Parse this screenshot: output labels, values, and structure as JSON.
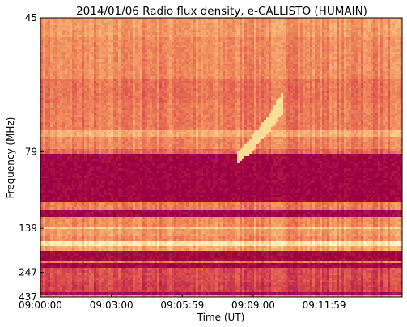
{
  "chart_data": {
    "type": "heatmap",
    "title": "2014/01/06  Radio flux density, e-CALLISTO (HUMAIN)",
    "xlabel": "Time (UT)",
    "ylabel": "Frequency (MHz)",
    "x_ticks": [
      "09:00:00",
      "09:03:00",
      "09:05:59",
      "09:09:00",
      "09:11:59"
    ],
    "x_tick_values_min": [
      0,
      3,
      6,
      9,
      12
    ],
    "x_range_min": [
      0,
      15.3
    ],
    "y_ticks": [
      "45",
      "79",
      "139",
      "247",
      "437"
    ],
    "y_tick_values_mhz": [
      45,
      79,
      139,
      247,
      437
    ],
    "y_range_mhz": [
      45,
      437
    ],
    "y_scale": "reciprocal",
    "y_inverted": true,
    "colormap": [
      "#9b0042",
      "#c42a4d",
      "#e0584e",
      "#f08a5c",
      "#f6b97a",
      "#fde6a0",
      "#ffffe6"
    ],
    "grid": false,
    "bands_mhz": [
      {
        "from": 45,
        "to": 48,
        "level": 0.55
      },
      {
        "from": 48,
        "to": 56,
        "level": 0.5
      },
      {
        "from": 56,
        "to": 62,
        "level": 0.42
      },
      {
        "from": 62,
        "to": 70,
        "level": 0.45
      },
      {
        "from": 70,
        "to": 73,
        "level": 0.62
      },
      {
        "from": 73,
        "to": 78,
        "level": 0.48
      },
      {
        "from": 78,
        "to": 80,
        "level": 0.38
      },
      {
        "from": 80,
        "to": 110,
        "level": 0.02
      },
      {
        "from": 110,
        "to": 118,
        "level": 0.45
      },
      {
        "from": 118,
        "to": 126,
        "level": 0.03
      },
      {
        "from": 126,
        "to": 137,
        "level": 0.5
      },
      {
        "from": 137,
        "to": 141,
        "level": 0.72
      },
      {
        "from": 141,
        "to": 152,
        "level": 0.55
      },
      {
        "from": 152,
        "to": 160,
        "level": 0.5
      },
      {
        "from": 160,
        "to": 168,
        "level": 0.85
      },
      {
        "from": 168,
        "to": 178,
        "level": 0.6
      },
      {
        "from": 178,
        "to": 205,
        "level": 0.03
      },
      {
        "from": 205,
        "to": 213,
        "level": 0.45
      },
      {
        "from": 213,
        "to": 232,
        "level": 0.03
      },
      {
        "from": 232,
        "to": 300,
        "level": 0.28
      },
      {
        "from": 300,
        "to": 380,
        "level": 0.25
      },
      {
        "from": 380,
        "to": 420,
        "level": 0.05
      },
      {
        "from": 420,
        "to": 437,
        "level": 0.55
      }
    ],
    "burst_feature": {
      "t_start_min": 8.3,
      "t_end_min": 10.2,
      "f_start_mhz": 82,
      "f_end_mhz": 62,
      "level": 0.8
    }
  }
}
